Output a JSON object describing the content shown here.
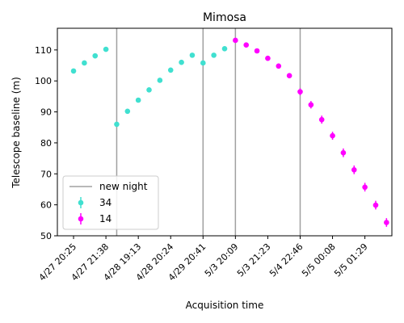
{
  "chart_data": {
    "type": "scatter",
    "title": "Mimosa",
    "xlabel": "Acquisition time",
    "ylabel": "Telescope baseline (m)",
    "ylim": [
      50,
      117
    ],
    "yticks": [
      50,
      60,
      70,
      80,
      90,
      100,
      110
    ],
    "xticks": [
      {
        "pos": 0,
        "label": "4/27 20:25"
      },
      {
        "pos": 3,
        "label": "4/27 21:38"
      },
      {
        "pos": 6,
        "label": "4/28 19:13"
      },
      {
        "pos": 9,
        "label": "4/28 20:24"
      },
      {
        "pos": 12,
        "label": "4/29 20:41"
      },
      {
        "pos": 15,
        "label": "5/3 20:09"
      },
      {
        "pos": 18,
        "label": "5/3 21:23"
      },
      {
        "pos": 21,
        "label": "5/4 22:46"
      },
      {
        "pos": 24,
        "label": "5/5 00:08"
      },
      {
        "pos": 27,
        "label": "5/5 01:29"
      }
    ],
    "xlim": [
      -1.5,
      29.5
    ],
    "legend": {
      "placement": "lower-left",
      "entries": [
        "new night",
        "34",
        "14"
      ]
    },
    "new_night_lines": [
      {
        "x": 4
      },
      {
        "x": 12
      },
      {
        "x": 15
      },
      {
        "x": 21
      }
    ],
    "series": [
      {
        "name": "34",
        "color": "#40E0D0",
        "points": [
          {
            "x": 0,
            "y": 103.2
          },
          {
            "x": 1,
            "y": 105.8
          },
          {
            "x": 2,
            "y": 108.1
          },
          {
            "x": 3,
            "y": 110.2
          },
          {
            "x": 4,
            "y": 86.0
          },
          {
            "x": 5,
            "y": 90.2
          },
          {
            "x": 6,
            "y": 93.8
          },
          {
            "x": 7,
            "y": 97.1
          },
          {
            "x": 8,
            "y": 100.2
          },
          {
            "x": 9,
            "y": 103.5
          },
          {
            "x": 10,
            "y": 106.0
          },
          {
            "x": 11,
            "y": 108.3
          },
          {
            "x": 12,
            "y": 105.8
          },
          {
            "x": 13,
            "y": 108.3
          },
          {
            "x": 14,
            "y": 110.4
          }
        ],
        "err": [
          0.5,
          0.5,
          0.5,
          0.5,
          0.5,
          0.6,
          0.6,
          0.6,
          0.6,
          0.6,
          0.6,
          0.6,
          0.6,
          0.6,
          0.6
        ]
      },
      {
        "name": "14",
        "color": "#FF00FF",
        "points": [
          {
            "x": 15,
            "y": 113.1
          },
          {
            "x": 16,
            "y": 111.6
          },
          {
            "x": 17,
            "y": 109.7
          },
          {
            "x": 18,
            "y": 107.3
          },
          {
            "x": 19,
            "y": 104.8
          },
          {
            "x": 20,
            "y": 101.7
          },
          {
            "x": 21,
            "y": 96.5
          },
          {
            "x": 22,
            "y": 92.3
          },
          {
            "x": 23,
            "y": 87.5
          },
          {
            "x": 24,
            "y": 82.3
          },
          {
            "x": 25,
            "y": 76.8
          },
          {
            "x": 26,
            "y": 71.3
          },
          {
            "x": 27,
            "y": 65.7
          },
          {
            "x": 28,
            "y": 59.9
          },
          {
            "x": 29,
            "y": 54.3
          }
        ],
        "err": [
          0.7,
          0.7,
          0.7,
          0.7,
          0.8,
          0.8,
          1.1,
          1.2,
          1.3,
          1.3,
          1.4,
          1.4,
          1.4,
          1.4,
          1.4
        ]
      }
    ],
    "colors": {
      "new_night_line": "#A0A0A0",
      "axis": "#000000"
    }
  }
}
